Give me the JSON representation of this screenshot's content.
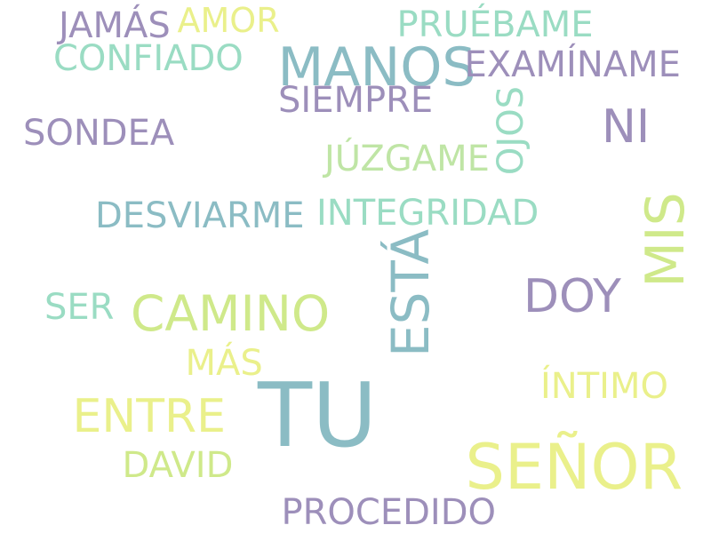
{
  "colors": {
    "purple": "#9d8fba",
    "mint": "#9adcc3",
    "teal": "#8bbcc4",
    "lime": "#cfe98a",
    "yellow": "#eaf08b",
    "lightgreen": "#bfe5a5"
  },
  "words": [
    {
      "id": "tu",
      "text": "TU",
      "color": "teal"
    },
    {
      "id": "senor",
      "text": "SEÑOR",
      "color": "yellow"
    },
    {
      "id": "manos",
      "text": "MANOS",
      "color": "teal"
    },
    {
      "id": "camino",
      "text": "CAMINO",
      "color": "lime"
    },
    {
      "id": "mis",
      "text": "MIS",
      "color": "lime"
    },
    {
      "id": "esta",
      "text": "ESTÁ",
      "color": "teal"
    },
    {
      "id": "doy",
      "text": "DOY",
      "color": "purple"
    },
    {
      "id": "entre",
      "text": "ENTRE",
      "color": "yellow"
    },
    {
      "id": "ni",
      "text": "NI",
      "color": "purple"
    },
    {
      "id": "examiname",
      "text": "EXAMÍNAME",
      "color": "purple"
    },
    {
      "id": "pruebame",
      "text": "PRUÉBAME",
      "color": "mint"
    },
    {
      "id": "confiado",
      "text": "CONFIADO",
      "color": "mint"
    },
    {
      "id": "jamas",
      "text": "JAMÁS",
      "color": "purple"
    },
    {
      "id": "amor",
      "text": "AMOR",
      "color": "yellow"
    },
    {
      "id": "siempre",
      "text": "SIEMPRE",
      "color": "purple"
    },
    {
      "id": "ojos",
      "text": "OJOS",
      "color": "mint"
    },
    {
      "id": "sondea",
      "text": "SONDEA",
      "color": "purple"
    },
    {
      "id": "juzgame",
      "text": "JÚZGAME",
      "color": "lightgreen"
    },
    {
      "id": "desviarme",
      "text": "DESVIARME",
      "color": "teal"
    },
    {
      "id": "integridad",
      "text": "INTEGRIDAD",
      "color": "mint"
    },
    {
      "id": "ser",
      "text": "SER",
      "color": "mint"
    },
    {
      "id": "mas",
      "text": "MÁS",
      "color": "yellow"
    },
    {
      "id": "intimo",
      "text": "ÍNTIMO",
      "color": "yellow"
    },
    {
      "id": "david",
      "text": "DAVID",
      "color": "lime"
    },
    {
      "id": "procedido",
      "text": "PROCEDIDO",
      "color": "purple"
    }
  ]
}
